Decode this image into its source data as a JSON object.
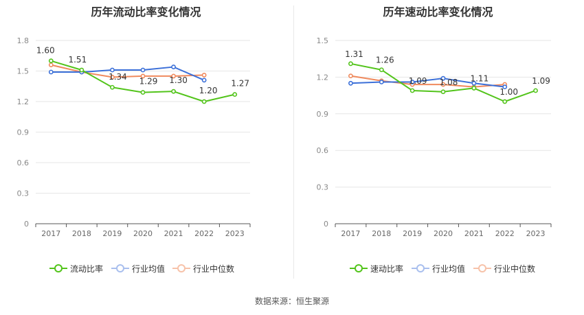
{
  "charts": [
    {
      "title": "历年流动比率变化情况",
      "legend": [
        "流动比率",
        "行业均值",
        "行业中位数"
      ]
    },
    {
      "title": "历年速动比率变化情况",
      "legend": [
        "速动比率",
        "行业均值",
        "行业中位数"
      ]
    }
  ],
  "source": "数据来源：恒生聚源",
  "chart_data": [
    {
      "type": "line",
      "title": "历年流动比率变化情况",
      "x": [
        "2017",
        "2018",
        "2019",
        "2020",
        "2021",
        "2022",
        "2023"
      ],
      "ylim": [
        0,
        1.8
      ],
      "yticks": [
        "0",
        "0.3",
        "0.6",
        "0.9",
        "1.2",
        "1.5",
        "1.8"
      ],
      "grid": true,
      "legend_position": "bottom",
      "series": [
        {
          "name": "流动比率",
          "color": "#52c41a",
          "values": [
            1.6,
            1.51,
            1.34,
            1.29,
            1.3,
            1.2,
            1.27
          ],
          "labels": [
            "1.60",
            "1.51",
            "1.34",
            "1.29",
            "1.30",
            "1.20",
            "1.27"
          ]
        },
        {
          "name": "行业均值",
          "color": "#3b6fd8",
          "values": [
            1.49,
            1.49,
            1.51,
            1.51,
            1.54,
            1.41,
            null
          ]
        },
        {
          "name": "行业中位数",
          "color": "#f08a5d",
          "values": [
            1.56,
            1.49,
            1.44,
            1.45,
            1.45,
            1.46,
            null
          ]
        }
      ]
    },
    {
      "type": "line",
      "title": "历年速动比率变化情况",
      "x": [
        "2017",
        "2018",
        "2019",
        "2020",
        "2021",
        "2022",
        "2023"
      ],
      "ylim": [
        0,
        1.5
      ],
      "yticks": [
        "0",
        "0.3",
        "0.6",
        "0.9",
        "1.2",
        "1.5"
      ],
      "grid": true,
      "legend_position": "bottom",
      "series": [
        {
          "name": "速动比率",
          "color": "#52c41a",
          "values": [
            1.31,
            1.26,
            1.09,
            1.08,
            1.11,
            1.0,
            1.09
          ],
          "labels": [
            "1.31",
            "1.26",
            "1.09",
            "1.08",
            "1.11",
            "1.00",
            "1.09"
          ]
        },
        {
          "name": "行业均值",
          "color": "#3b6fd8",
          "values": [
            1.15,
            1.16,
            1.16,
            1.19,
            1.15,
            1.12,
            null
          ]
        },
        {
          "name": "行业中位数",
          "color": "#f08a5d",
          "values": [
            1.21,
            1.17,
            1.14,
            1.14,
            1.12,
            1.14,
            null
          ]
        }
      ]
    }
  ]
}
